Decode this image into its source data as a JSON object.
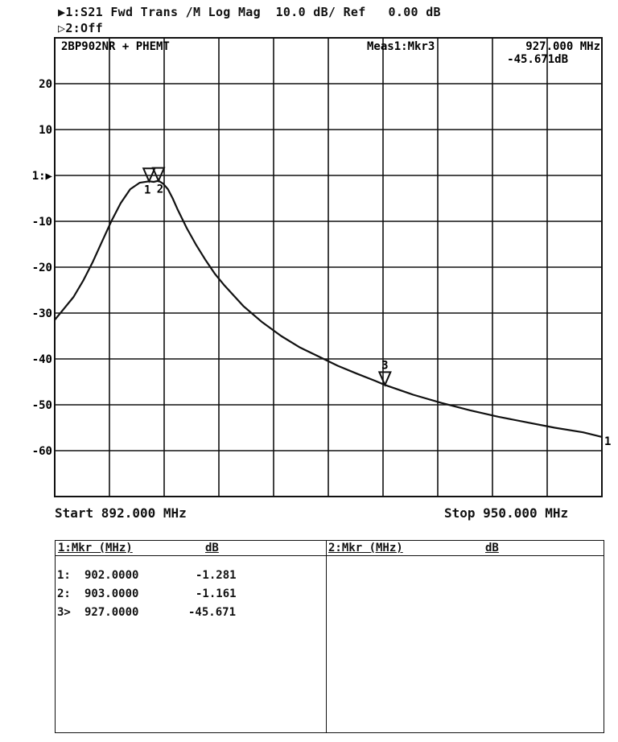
{
  "header": {
    "line1": "▶1:S21 Fwd Trans /M Log Mag  10.0 dB/ Ref   0.00 dB",
    "line2": "▷2:Off"
  },
  "chart_data": {
    "type": "line",
    "title": "2BP902NR + PHEMT",
    "marker_readout": {
      "label": "Meas1:Mkr3",
      "frequency": "927.000 MHz",
      "value": "-45.671dB"
    },
    "xlim": [
      892.0,
      950.0
    ],
    "ylim": [
      -70,
      30
    ],
    "y_ticks": [
      {
        "value": 20,
        "label": "20"
      },
      {
        "value": 10,
        "label": "10"
      },
      {
        "value": 0,
        "label": "1:▶"
      },
      {
        "value": -10,
        "label": "-10"
      },
      {
        "value": -20,
        "label": "-20"
      },
      {
        "value": -30,
        "label": "-30"
      },
      {
        "value": -40,
        "label": "-40"
      },
      {
        "value": -50,
        "label": "-50"
      },
      {
        "value": -60,
        "label": "-60"
      }
    ],
    "start_label": "Start 892.000 MHz",
    "stop_label": "Stop 950.000 MHz",
    "trace_end_label": "1",
    "grid": true,
    "series": [
      {
        "x": [
          892.0,
          893.0,
          894.0,
          895.0,
          896.0,
          897.0,
          898.0,
          899.0,
          900.0,
          901.0,
          902.0,
          902.5,
          903.0,
          903.5,
          904.0,
          904.5,
          905.0,
          906.0,
          907.0,
          908.0,
          909.0,
          910.0,
          912.0,
          914.0,
          916.0,
          918.0,
          920.0,
          922.0,
          924.0,
          926.0,
          927.0,
          930.0,
          933.0,
          936.0,
          939.0,
          942.0,
          945.0,
          948.0,
          950.0
        ],
        "y": [
          -31.5,
          -29.0,
          -26.5,
          -23.0,
          -19.0,
          -14.5,
          -10.0,
          -6.0,
          -3.0,
          -1.6,
          -1.28,
          -1.4,
          -1.16,
          -1.8,
          -3.0,
          -5.0,
          -7.3,
          -11.5,
          -15.2,
          -18.5,
          -21.5,
          -24.0,
          -28.5,
          -32.0,
          -35.0,
          -37.5,
          -39.5,
          -41.5,
          -43.2,
          -44.8,
          -45.67,
          -47.8,
          -49.6,
          -51.2,
          -52.6,
          -53.8,
          -55.0,
          -56.0,
          -57.0
        ]
      }
    ],
    "markers": [
      {
        "id": "1",
        "x": 902.0,
        "y": -1.281
      },
      {
        "id": "2",
        "x": 903.0,
        "y": -1.161
      },
      {
        "id": "3",
        "x": 927.0,
        "y": -45.671
      }
    ]
  },
  "marker_table": {
    "left": {
      "header_mkr": "1:Mkr (MHz)",
      "header_db": "dB",
      "rows": [
        {
          "id": "1:",
          "freq": "902.0000",
          "db": "-1.281"
        },
        {
          "id": "2:",
          "freq": "903.0000",
          "db": "-1.161"
        },
        {
          "id": "3>",
          "freq": "927.0000",
          "db": "-45.671"
        }
      ]
    },
    "right": {
      "header_mkr": "2:Mkr (MHz)",
      "header_db": "dB"
    }
  }
}
